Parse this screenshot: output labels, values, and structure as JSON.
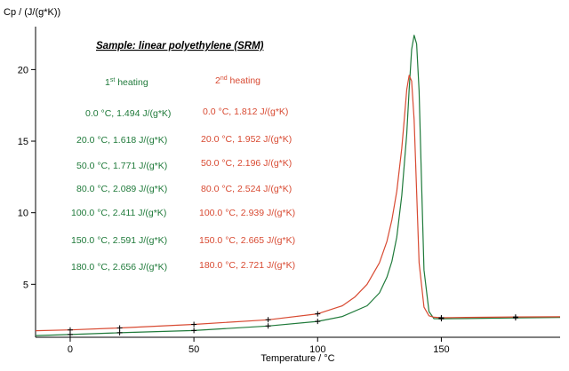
{
  "chart_data": {
    "type": "line",
    "title": "Sample: linear polyethylene (SRM)",
    "xlabel": "Temperature / °C",
    "ylabel": "Cp / (J/(g*K))",
    "xlim": [
      -14,
      198
    ],
    "ylim": [
      1.3,
      23
    ],
    "xticks": [
      0,
      50,
      100,
      150
    ],
    "yticks": [
      5,
      10,
      15,
      20
    ],
    "grid": false,
    "series": [
      {
        "name": "1st heating",
        "color": "#1f7a3a",
        "x": [
          -14,
          0,
          20,
          50,
          80,
          100,
          110,
          120,
          125,
          128,
          130,
          132,
          134,
          136,
          137,
          138,
          139,
          140,
          141,
          142,
          143,
          145,
          147,
          150,
          160,
          180,
          198
        ],
        "y": [
          1.42,
          1.494,
          1.618,
          1.771,
          2.089,
          2.411,
          2.75,
          3.5,
          4.4,
          5.5,
          6.6,
          8.3,
          11.2,
          15.5,
          18.6,
          21.4,
          22.4,
          21.8,
          18.5,
          12.0,
          6.0,
          3.1,
          2.6,
          2.591,
          2.61,
          2.656,
          2.68
        ]
      },
      {
        "name": "2nd heating",
        "color": "#d84a32",
        "x": [
          -14,
          0,
          20,
          50,
          80,
          100,
          110,
          115,
          120,
          125,
          128,
          130,
          132,
          134,
          135,
          136,
          137,
          138,
          139,
          140,
          141,
          143,
          145,
          147,
          150,
          160,
          180,
          198
        ],
        "y": [
          1.76,
          1.812,
          1.952,
          2.196,
          2.524,
          2.939,
          3.5,
          4.1,
          5.0,
          6.5,
          8.0,
          9.5,
          11.5,
          14.5,
          16.5,
          18.6,
          19.6,
          19.2,
          16.5,
          11.5,
          6.5,
          3.4,
          2.8,
          2.7,
          2.665,
          2.69,
          2.721,
          2.73
        ]
      }
    ],
    "markers": {
      "x": [
        0,
        20,
        50,
        80,
        100,
        150,
        180
      ],
      "series1_y": [
        1.494,
        1.618,
        1.771,
        2.089,
        2.411,
        2.591,
        2.656
      ],
      "series2_y": [
        1.812,
        1.952,
        2.196,
        2.524,
        2.939,
        2.665,
        2.721
      ]
    },
    "legend_headers": {
      "s1_num": "1",
      "s1_sup": "st",
      "s1_rest": " heating",
      "s2_num": "2",
      "s2_sup": "nd",
      "s2_rest": " heating"
    },
    "annotations_s1": [
      "0.0 °C, 1.494 J/(g*K)",
      "20.0 °C, 1.618 J/(g*K)",
      "50.0 °C, 1.771 J/(g*K)",
      "80.0 °C, 2.089 J/(g*K)",
      "100.0 °C, 2.411 J/(g*K)",
      "150.0 °C, 2.591 J/(g*K)",
      "180.0 °C, 2.656 J/(g*K)"
    ],
    "annotations_s2": [
      "0.0 °C, 1.812 J/(g*K)",
      "20.0 °C, 1.952 J/(g*K)",
      "50.0 °C, 2.196 J/(g*K)",
      "80.0 °C, 2.524 J/(g*K)",
      "100.0 °C, 2.939 J/(g*K)",
      "150.0 °C, 2.665 J/(g*K)",
      "180.0 °C, 2.721 J/(g*K)"
    ]
  }
}
